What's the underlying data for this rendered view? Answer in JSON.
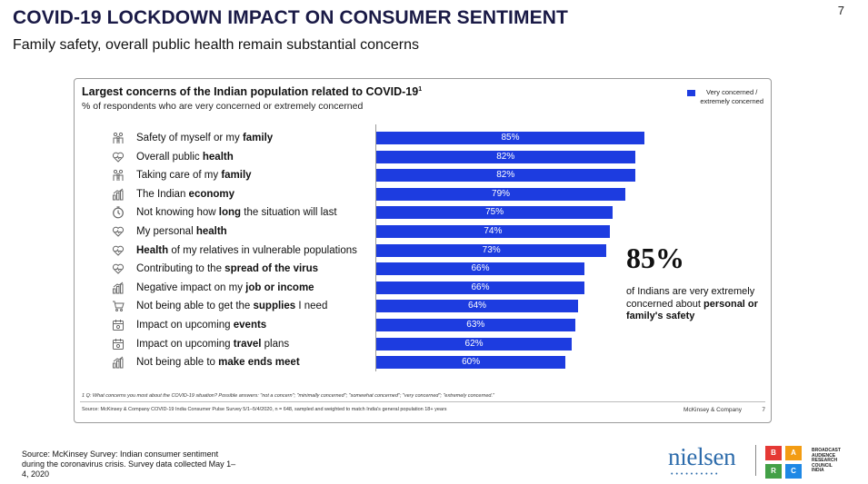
{
  "page": {
    "title": "COVID-19 LOCKDOWN IMPACT ON CONSUMER SENTIMENT",
    "subtitle": "Family safety, overall public health remain substantial concerns",
    "number": "7"
  },
  "chart_data": {
    "type": "bar",
    "orientation": "horizontal",
    "title": "Largest concerns of the Indian population related to COVID-19",
    "title_sup": "1",
    "subtitle": "% of respondents who are very concerned or extremely concerned",
    "legend": {
      "line1": "Very concerned /",
      "line2": "extremely concerned",
      "color": "#1d3ce0",
      "placement": "top-right"
    },
    "categories": [
      {
        "pre": "Safety of myself or my ",
        "bold": "family",
        "post": "",
        "icon": "family-icon"
      },
      {
        "pre": "Overall public ",
        "bold": "health",
        "post": "",
        "icon": "heart-icon"
      },
      {
        "pre": "Taking care of my ",
        "bold": "family",
        "post": "",
        "icon": "family-icon"
      },
      {
        "pre": "The Indian ",
        "bold": "economy",
        "post": "",
        "icon": "economy-icon"
      },
      {
        "pre": "Not knowing how ",
        "bold": "long",
        "post": " the situation will last",
        "icon": "clock-icon"
      },
      {
        "pre": "My personal ",
        "bold": "health",
        "post": "",
        "icon": "heart-icon"
      },
      {
        "pre": "",
        "bold": "Health",
        "post": " of my relatives in vulnerable populations",
        "icon": "heart-icon"
      },
      {
        "pre": "Contributing to the ",
        "bold": "spread of the virus",
        "post": "",
        "icon": "heart-icon"
      },
      {
        "pre": "Negative impact on my ",
        "bold": "job or income",
        "post": "",
        "icon": "economy-icon"
      },
      {
        "pre": "Not being able to get the ",
        "bold": "supplies",
        "post": " I need",
        "icon": "cart-icon"
      },
      {
        "pre": "Impact on upcoming ",
        "bold": "events",
        "post": "",
        "icon": "calendar-icon"
      },
      {
        "pre": "Impact on upcoming ",
        "bold": "travel",
        "post": " plans",
        "icon": "calendar-icon"
      },
      {
        "pre": "Not being able to ",
        "bold": "make ends meet",
        "post": "",
        "icon": "economy-icon"
      }
    ],
    "values": [
      85,
      82,
      82,
      79,
      75,
      74,
      73,
      66,
      66,
      64,
      63,
      62,
      60
    ],
    "value_labels": [
      "85%",
      "82%",
      "82%",
      "79%",
      "75%",
      "74%",
      "73%",
      "66%",
      "66%",
      "64%",
      "63%",
      "62%",
      "60%"
    ],
    "xlim": [
      0,
      100
    ],
    "bar_color": "#1d3ce0",
    "callout": {
      "value": "85%",
      "text_pre": "of Indians are very extremely concerned about ",
      "text_bold": "personal or family's safety"
    },
    "footnote": "1 Q: What concerns you most about the COVID-19 situation? Possible answers: \"not a concern\"; \"minimally concerned\"; \"somewhat concerned\"; \"very concerned\"; \"extremely concerned.\"",
    "source": "Source: McKinsey & Company COVID-19 India Consumer Pulse Survey 5/1–5/4/2020, n = 648, sampled and weighted to match India's general population 18+ years",
    "brand": "McKinsey & Company",
    "page_number": "7"
  },
  "footer": {
    "source": "Source: McKinsey Survey: Indian consumer sentiment during the coronavirus crisis. Survey data collected May 1–4, 2020",
    "nielsen": "nielsen",
    "barc_letters": [
      "B",
      "A",
      "R",
      "C"
    ],
    "barc_colors": [
      "#e53935",
      "#f39c12",
      "#43a047",
      "#1e88e5"
    ],
    "barc_text": [
      "BROADCAST",
      "AUDIENCE",
      "RESEARCH",
      "COUNCIL",
      "INDIA"
    ]
  }
}
